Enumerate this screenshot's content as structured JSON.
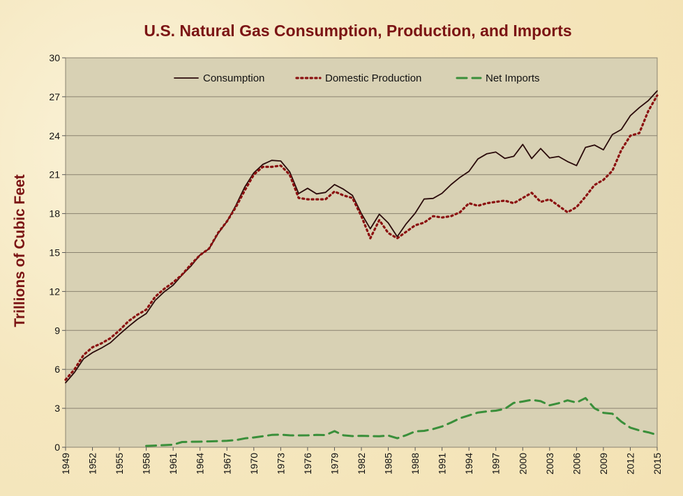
{
  "chart_data": {
    "type": "line",
    "title": "U.S. Natural Gas Consumption, Production, and Imports",
    "ylabel": "Trillions of Cubic Feet",
    "xlabel": "",
    "xlim": [
      1949,
      2015
    ],
    "ylim": [
      0,
      30
    ],
    "yticks": [
      0,
      3,
      6,
      9,
      12,
      15,
      18,
      21,
      24,
      27,
      30
    ],
    "xticks": [
      1949,
      1952,
      1955,
      1958,
      1961,
      1964,
      1967,
      1970,
      1973,
      1976,
      1979,
      1982,
      1985,
      1988,
      1991,
      1994,
      1997,
      2000,
      2003,
      2006,
      2009,
      2012,
      2015
    ],
    "grid": true,
    "legend": "top",
    "plot_background": "#d8d1b4",
    "series": [
      {
        "name": "Consumption",
        "color": "#2a0a0a",
        "style": "solid",
        "x": [
          1949,
          1950,
          1951,
          1952,
          1953,
          1954,
          1955,
          1956,
          1957,
          1958,
          1959,
          1960,
          1961,
          1962,
          1963,
          1964,
          1965,
          1966,
          1967,
          1968,
          1969,
          1970,
          1971,
          1972,
          1973,
          1974,
          1975,
          1976,
          1977,
          1978,
          1979,
          1980,
          1981,
          1982,
          1983,
          1984,
          1985,
          1986,
          1987,
          1988,
          1989,
          1990,
          1991,
          1992,
          1993,
          1994,
          1995,
          1996,
          1997,
          1998,
          1999,
          2000,
          2001,
          2002,
          2003,
          2004,
          2005,
          2006,
          2007,
          2008,
          2009,
          2010,
          2011,
          2012,
          2013,
          2014,
          2015
        ],
        "values": [
          4.97,
          5.77,
          6.81,
          7.29,
          7.64,
          8.05,
          8.69,
          9.29,
          9.85,
          10.3,
          11.32,
          11.97,
          12.49,
          13.27,
          13.97,
          14.81,
          15.28,
          16.45,
          17.39,
          18.63,
          20.06,
          21.14,
          21.79,
          22.1,
          22.05,
          21.22,
          19.54,
          19.95,
          19.52,
          19.63,
          20.24,
          19.88,
          19.4,
          18.0,
          16.83,
          17.95,
          17.28,
          16.22,
          17.21,
          18.03,
          19.12,
          19.17,
          19.56,
          20.23,
          20.79,
          21.25,
          22.21,
          22.61,
          22.74,
          22.25,
          22.41,
          23.33,
          22.24,
          23.01,
          22.28,
          22.4,
          22.01,
          21.7,
          23.1,
          23.28,
          22.91,
          24.09,
          24.48,
          25.54,
          26.16,
          26.7,
          27.45
        ]
      },
      {
        "name": "Domestic Production",
        "color": "#8b1010",
        "style": "dotted",
        "x": [
          1949,
          1950,
          1951,
          1952,
          1953,
          1954,
          1955,
          1956,
          1957,
          1958,
          1959,
          1960,
          1961,
          1962,
          1963,
          1964,
          1965,
          1966,
          1967,
          1968,
          1969,
          1970,
          1971,
          1972,
          1973,
          1974,
          1975,
          1976,
          1977,
          1978,
          1979,
          1980,
          1981,
          1982,
          1983,
          1984,
          1985,
          1986,
          1987,
          1988,
          1989,
          1990,
          1991,
          1992,
          1993,
          1994,
          1995,
          1996,
          1997,
          1998,
          1999,
          2000,
          2001,
          2002,
          2003,
          2004,
          2005,
          2006,
          2007,
          2008,
          2009,
          2010,
          2011,
          2012,
          2013,
          2014,
          2015
        ],
        "values": [
          5.2,
          6.0,
          7.1,
          7.7,
          8.0,
          8.4,
          9.0,
          9.7,
          10.2,
          10.6,
          11.6,
          12.2,
          12.7,
          13.3,
          14.1,
          14.8,
          15.3,
          16.5,
          17.4,
          18.5,
          19.8,
          21.0,
          21.6,
          21.6,
          21.7,
          21.0,
          19.2,
          19.1,
          19.1,
          19.1,
          19.7,
          19.4,
          19.2,
          17.8,
          16.1,
          17.5,
          16.5,
          16.1,
          16.6,
          17.1,
          17.3,
          17.8,
          17.7,
          17.8,
          18.1,
          18.8,
          18.6,
          18.8,
          18.9,
          19.0,
          18.8,
          19.2,
          19.6,
          18.9,
          19.1,
          18.6,
          18.1,
          18.5,
          19.3,
          20.2,
          20.6,
          21.3,
          22.9,
          24.0,
          24.2,
          25.9,
          27.1
        ]
      },
      {
        "name": "Net Imports",
        "color": "#3a8f3a",
        "style": "dashed",
        "x": [
          1958,
          1959,
          1960,
          1961,
          1962,
          1963,
          1964,
          1965,
          1966,
          1967,
          1968,
          1969,
          1970,
          1971,
          1972,
          1973,
          1974,
          1975,
          1976,
          1977,
          1978,
          1979,
          1980,
          1981,
          1982,
          1983,
          1984,
          1985,
          1986,
          1987,
          1988,
          1989,
          1990,
          1991,
          1992,
          1993,
          1994,
          1995,
          1996,
          1997,
          1998,
          1999,
          2000,
          2001,
          2002,
          2003,
          2004,
          2005,
          2006,
          2007,
          2008,
          2009,
          2010,
          2011,
          2012,
          2013,
          2014,
          2015
        ],
        "values": [
          0.1,
          0.13,
          0.16,
          0.2,
          0.4,
          0.42,
          0.43,
          0.45,
          0.47,
          0.5,
          0.55,
          0.68,
          0.75,
          0.85,
          0.95,
          0.97,
          0.92,
          0.91,
          0.92,
          0.95,
          0.94,
          1.24,
          0.92,
          0.86,
          0.88,
          0.86,
          0.84,
          0.9,
          0.69,
          0.93,
          1.22,
          1.26,
          1.4,
          1.6,
          1.9,
          2.23,
          2.45,
          2.67,
          2.76,
          2.82,
          2.95,
          3.42,
          3.52,
          3.65,
          3.55,
          3.23,
          3.39,
          3.61,
          3.44,
          3.79,
          3.0,
          2.65,
          2.58,
          1.97,
          1.51,
          1.3,
          1.15,
          0.95
        ]
      }
    ]
  }
}
